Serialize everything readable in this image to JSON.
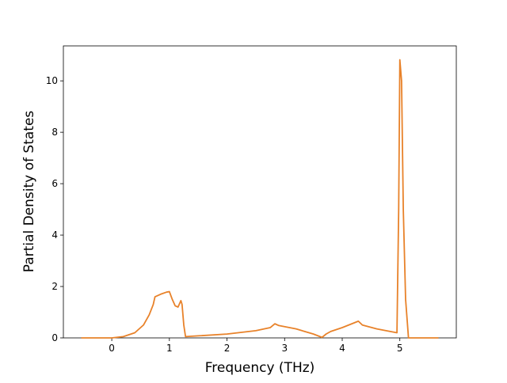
{
  "chart_data": {
    "type": "line",
    "x_label": "Frequency (THz)",
    "y_label": "Partial Density of States",
    "x": [
      -0.53,
      0,
      0.2,
      0.4,
      0.55,
      0.65,
      0.72,
      0.75,
      0.85,
      0.95,
      1.0,
      1.05,
      1.1,
      1.15,
      1.2,
      1.22,
      1.25,
      1.28,
      1.5,
      2.0,
      2.5,
      2.75,
      2.83,
      2.9,
      3.2,
      3.5,
      3.65,
      3.72,
      3.8,
      4.0,
      4.28,
      4.35,
      4.6,
      4.95,
      4.98,
      5.0,
      5.03,
      5.06,
      5.1,
      5.15,
      5.67
    ],
    "series": [
      {
        "color": "#e8822a",
        "values": [
          0,
          0,
          0.05,
          0.2,
          0.5,
          0.9,
          1.3,
          1.6,
          1.7,
          1.78,
          1.8,
          1.5,
          1.25,
          1.2,
          1.45,
          1.3,
          0.5,
          0.05,
          0.08,
          0.15,
          0.28,
          0.4,
          0.55,
          0.48,
          0.35,
          0.15,
          0.02,
          0.15,
          0.25,
          0.4,
          0.65,
          0.5,
          0.35,
          0.2,
          5,
          10.82,
          10,
          5,
          1.5,
          0,
          0
        ]
      }
    ],
    "xlim": [
      -0.84,
      5.98
    ],
    "xticks": [
      0,
      1,
      2,
      3,
      4,
      5
    ],
    "ylim": [
      0,
      11.36
    ],
    "yticks": [
      0,
      2,
      4,
      6,
      8,
      10
    ]
  }
}
